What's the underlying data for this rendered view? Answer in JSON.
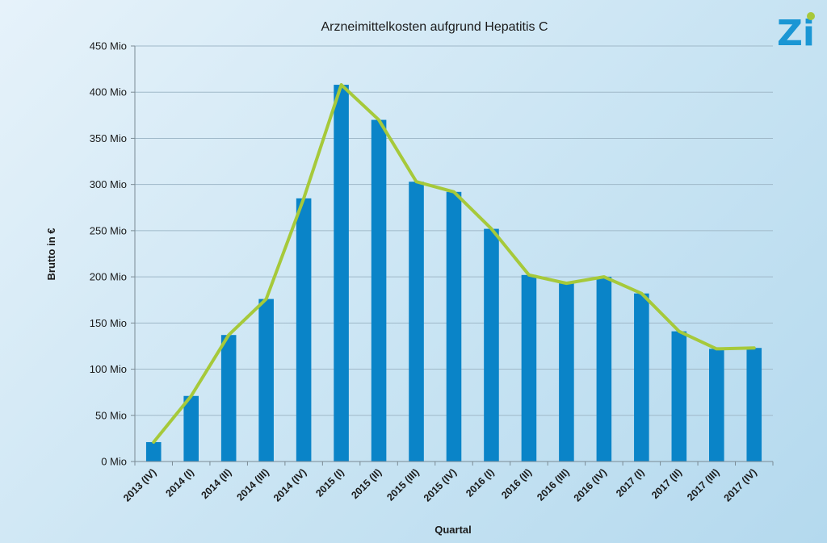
{
  "brand": {
    "logo_text": "Zi",
    "logo_color": "#1a96d4",
    "logo_dot_color": "#a8c83a"
  },
  "colors": {
    "bar": "#0a84c8",
    "line": "#a6c93a",
    "grid": "#9fb8c8",
    "axis": "#7a8a94"
  },
  "chart_data": {
    "type": "bar",
    "title": "Arzneimittelkosten aufgrund Hepatitis C",
    "xlabel": "Quartal",
    "ylabel": "Brutto in €",
    "ylim": [
      0,
      450
    ],
    "ytick_labels": [
      "0  Mio",
      "50 Mio",
      "100 Mio",
      "150 Mio",
      "200 Mio",
      "250 Mio",
      "300 Mio",
      "350 Mio",
      "400 Mio",
      "450 Mio"
    ],
    "grid": true,
    "categories": [
      "2013 (IV)",
      "2014 (I)",
      "2014 (II)",
      "2014 (III)",
      "2014 (IV)",
      "2015 (I)",
      "2015 (II)",
      "2015 (III)",
      "2015 (IV)",
      "2016 (I)",
      "2016 (II)",
      "2016 (III)",
      "2016 (IV)",
      "2017 (I)",
      "2017 (II)",
      "2017 (III)",
      "2017 (IV)"
    ],
    "series": [
      {
        "values": [
          21,
          71,
          137,
          176,
          285,
          408,
          370,
          303,
          292,
          252,
          202,
          193,
          200,
          182,
          141,
          122,
          123
        ]
      }
    ],
    "overlay_line": {
      "values": [
        21,
        71,
        137,
        176,
        285,
        408,
        370,
        303,
        292,
        252,
        202,
        193,
        200,
        182,
        141,
        122,
        123
      ]
    }
  }
}
